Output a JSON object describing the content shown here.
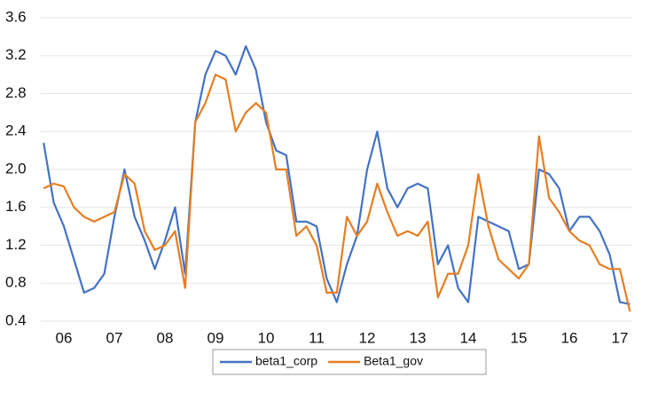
{
  "chart_data": {
    "type": "line",
    "x": [
      2006.1,
      2006.3,
      2006.5,
      2006.7,
      2006.9,
      2007.1,
      2007.3,
      2007.5,
      2007.7,
      2007.9,
      2008.1,
      2008.3,
      2008.5,
      2008.7,
      2008.9,
      2009.1,
      2009.3,
      2009.5,
      2009.7,
      2009.9,
      2010.1,
      2010.3,
      2010.5,
      2010.7,
      2010.9,
      2011.1,
      2011.3,
      2011.5,
      2011.7,
      2011.9,
      2012.1,
      2012.3,
      2012.5,
      2012.7,
      2012.9,
      2013.1,
      2013.3,
      2013.5,
      2013.7,
      2013.9,
      2014.1,
      2014.3,
      2014.5,
      2014.7,
      2014.9,
      2015.1,
      2015.3,
      2015.5,
      2015.7,
      2015.9,
      2016.1,
      2016.3,
      2016.5,
      2016.7,
      2016.9,
      2017.1,
      2017.3,
      2017.5,
      2017.7
    ],
    "series": [
      {
        "name": "beta1_corp",
        "color": "#4472c4",
        "values": [
          2.28,
          1.65,
          1.4,
          1.05,
          0.7,
          0.75,
          0.9,
          1.5,
          2.0,
          1.5,
          1.25,
          0.95,
          1.25,
          1.6,
          0.9,
          2.5,
          3.0,
          3.25,
          3.2,
          3.0,
          3.3,
          3.05,
          2.5,
          2.2,
          2.15,
          1.45,
          1.45,
          1.4,
          0.85,
          0.6,
          1.0,
          1.3,
          2.0,
          2.4,
          1.8,
          1.6,
          1.8,
          1.85,
          1.8,
          1.0,
          1.2,
          0.75,
          0.6,
          1.5,
          1.45,
          1.4,
          1.35,
          0.95,
          1.0,
          2.0,
          1.95,
          1.8,
          1.35,
          1.5,
          1.5,
          1.35,
          1.1,
          0.6,
          0.58
        ]
      },
      {
        "name": "Beta1_gov",
        "color": "#e67e22",
        "values": [
          1.8,
          1.85,
          1.82,
          1.6,
          1.5,
          1.45,
          1.5,
          1.55,
          1.95,
          1.85,
          1.35,
          1.15,
          1.2,
          1.35,
          0.75,
          2.5,
          2.7,
          3.0,
          2.95,
          2.4,
          2.6,
          2.7,
          2.6,
          2.0,
          2.0,
          1.3,
          1.4,
          1.2,
          0.7,
          0.7,
          1.5,
          1.3,
          1.45,
          1.85,
          1.55,
          1.3,
          1.35,
          1.3,
          1.45,
          0.65,
          0.9,
          0.9,
          1.2,
          1.95,
          1.4,
          1.05,
          0.95,
          0.85,
          1.0,
          2.35,
          1.7,
          1.55,
          1.35,
          1.25,
          1.2,
          1.0,
          0.95,
          0.95,
          0.5
        ]
      }
    ],
    "xlim": [
      2006,
      2017.75
    ],
    "xticks": [
      {
        "value": 2006.5,
        "label": "06"
      },
      {
        "value": 2007.5,
        "label": "07"
      },
      {
        "value": 2008.5,
        "label": "08"
      },
      {
        "value": 2009.5,
        "label": "09"
      },
      {
        "value": 2010.5,
        "label": "10"
      },
      {
        "value": 2011.5,
        "label": "11"
      },
      {
        "value": 2012.5,
        "label": "12"
      },
      {
        "value": 2013.5,
        "label": "13"
      },
      {
        "value": 2014.5,
        "label": "14"
      },
      {
        "value": 2015.5,
        "label": "15"
      },
      {
        "value": 2016.5,
        "label": "16"
      },
      {
        "value": 2017.5,
        "label": "17"
      }
    ],
    "ylim": [
      0.4,
      3.6
    ],
    "yticks": [
      0.4,
      0.8,
      1.2,
      1.6,
      {
        "value": 2,
        "label": "2.0"
      },
      2.4,
      2.8,
      3.2,
      3.6
    ],
    "grid": true,
    "legend": "bottom"
  }
}
